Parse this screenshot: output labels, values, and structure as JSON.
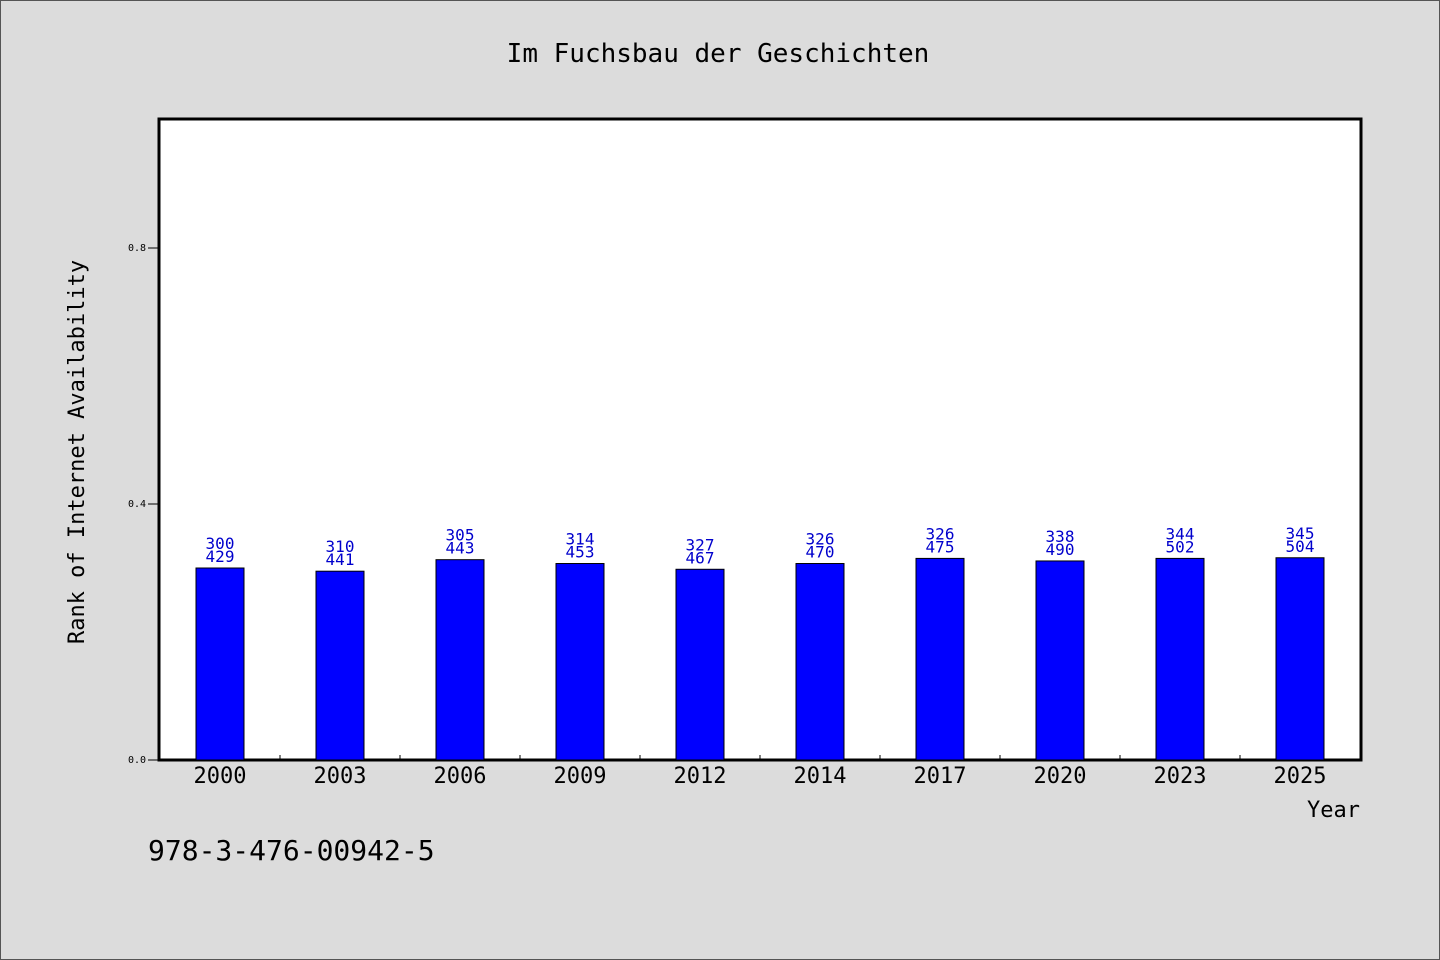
{
  "chart_data": {
    "type": "bar",
    "title": "Im Fuchsbau der Geschichten",
    "xlabel": "Year",
    "ylabel": "Rank of Internet Availability",
    "ylim": [
      0.0,
      1.0
    ],
    "yticks": [
      "0.0",
      "0.4",
      "0.8"
    ],
    "categories": [
      "2000",
      "2003",
      "2006",
      "2009",
      "2012",
      "2014",
      "2017",
      "2020",
      "2023",
      "2025"
    ],
    "values": [
      0.3,
      0.295,
      0.313,
      0.307,
      0.298,
      0.307,
      0.315,
      0.311,
      0.315,
      0.316
    ],
    "bar_labels_top": [
      "300",
      "310",
      "305",
      "314",
      "327",
      "326",
      "326",
      "338",
      "344",
      "345"
    ],
    "bar_labels_bottom": [
      "429",
      "441",
      "443",
      "453",
      "467",
      "470",
      "475",
      "490",
      "502",
      "504"
    ],
    "grid": false,
    "legend": "none",
    "colors": {
      "bar": "#0000ff",
      "bar_label": "#0000cc",
      "background": "#dcdcdc",
      "plot_background": "#ffffff",
      "axis": "#000000"
    }
  },
  "footer": {
    "isbn": "978-3-476-00942-5"
  }
}
